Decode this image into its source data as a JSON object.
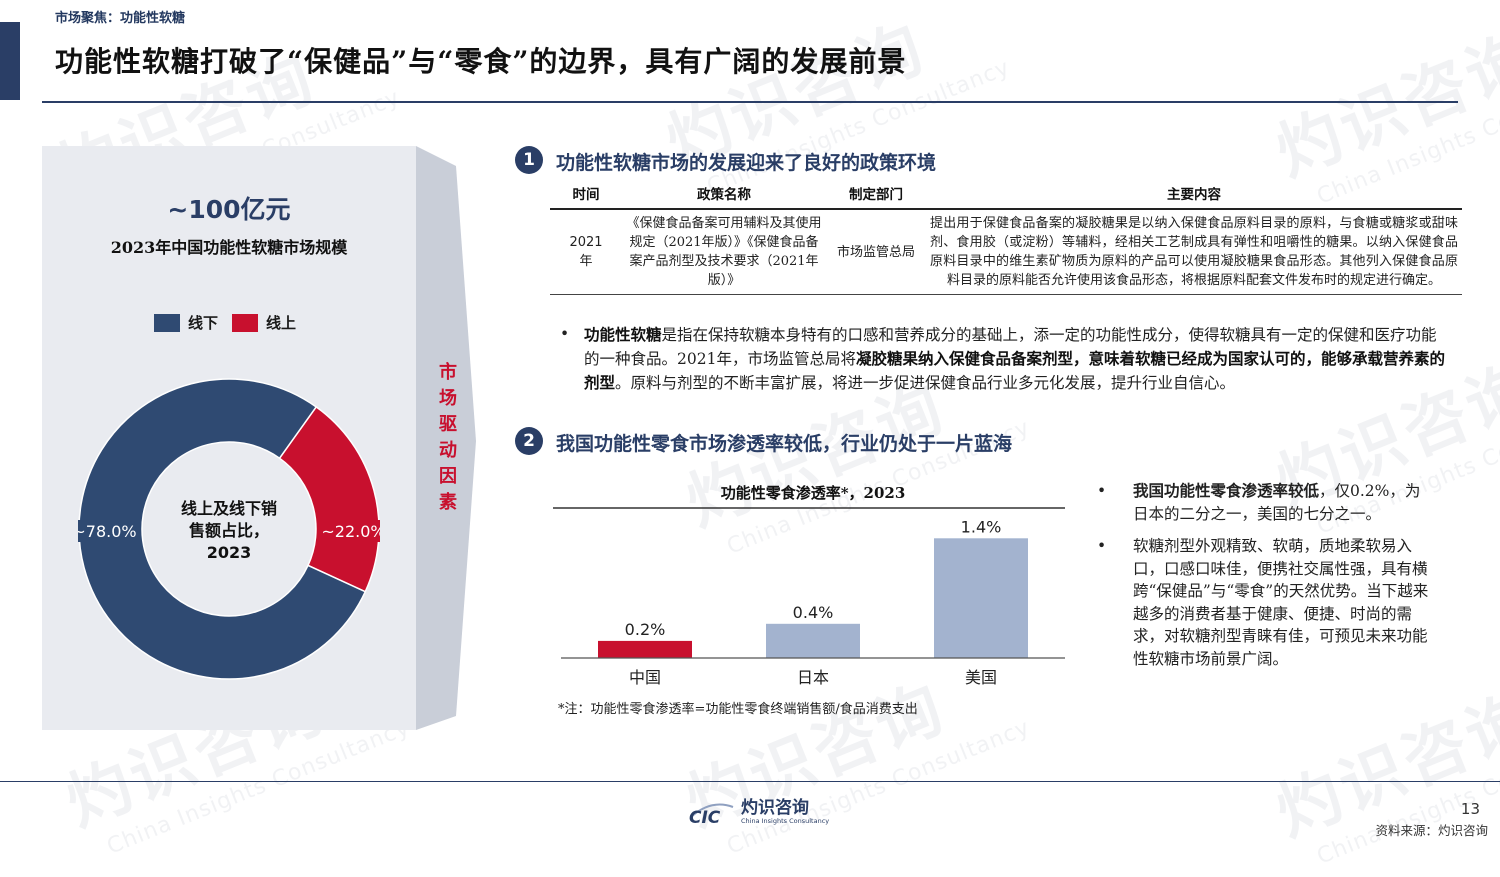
{
  "header": {
    "section_tag": "市场聚焦：功能性软糖",
    "title": "功能性软糖打破了“保健品”与“零食”的边界，具有广阔的发展前景"
  },
  "left_panel": {
    "market_size": "~100亿元",
    "market_caption": "2023年中国功能性软糖市场规模",
    "legend": [
      {
        "label": "线下",
        "color": "#2f4a72"
      },
      {
        "label": "线上",
        "color": "#c8102e"
      }
    ],
    "donut": {
      "center_lines": [
        "线上及线下销",
        "售额占比，",
        "2023"
      ],
      "segments": [
        {
          "name": "线下",
          "value": 78.0,
          "label": "~78.0%",
          "color": "#2f4a72"
        },
        {
          "name": "线上",
          "value": 22.0,
          "label": "~22.0%",
          "color": "#c8102e"
        }
      ]
    }
  },
  "drivers_label": [
    "市",
    "场",
    "驱",
    "动",
    "因",
    "素"
  ],
  "section1": {
    "number": "1",
    "title": "功能性软糖市场的发展迎来了良好的政策环境",
    "table": {
      "headers": [
        "时间",
        "政策名称",
        "制定部门",
        "主要内容"
      ],
      "row": {
        "time": [
          "2021",
          "年"
        ],
        "policy_name": "《保健食品备案可用辅料及其使用规定（2021年版）》《保健食品备案产品剂型及技术要求（2021年版）》",
        "department": "市场监管总局",
        "content": "提出用于保健食品备案的凝胶糖果是以纳入保健食品原料目录的原料，与食糖或糖浆或甜味剂、食用胶（或淀粉）等辅料，经相关工艺制成具有弹性和咀嚼性的糖果。以纳入保健食品原料目录中的维生素矿物质为原料的产品可以使用凝胶糖果食品形态。其他列入保健食品原料目录的原料能否允许使用该食品形态，将根据原料配套文件发布时的规定进行确定。"
      }
    },
    "bullet": {
      "b1": "功能性软糖",
      "t1": "是指在保持软糖本身特有的口感和营养成分的基础上，添一定的功能性成分，使得软糖具有一定的保健和医疗功能的一种食品。2021年，市场监管总局将",
      "b2": "凝胶糖果纳入保健食品备案剂型，意味着软糖已经成为国家认可的，能够承载营养素的剂型",
      "t2": "。原料与剂型的不断丰富扩展，将进一步促进保健食品行业多元化发展，提升行业自信心。"
    }
  },
  "section2": {
    "number": "2",
    "title": "我国功能性零食市场渗透率较低，行业仍处于一片蓝海",
    "chart_note": "*注：功能性零食渗透率=功能性零食终端销售额/食品消费支出",
    "bullets": [
      {
        "bold": "我国功能性零食渗透率较低",
        "text": "，仅0.2%，为日本的二分之一，美国的七分之一。"
      },
      {
        "bold": "",
        "text": "软糖剂型外观精致、软萌，质地柔软易入口，口感口味佳，便携社交属性强，具有横跨“保健品”与“零食”的天然优势。当下越来越多的消费者基于健康、便捷、时尚的需求，对软糖剂型青睐有佳，可预见未来功能性软糖市场前景广阔。"
      }
    ]
  },
  "chart_data": [
    {
      "type": "pie",
      "title": "",
      "categories": [
        "线下",
        "线上"
      ],
      "values": [
        78.0,
        22.0
      ],
      "labels": [
        "~78.0%",
        "~22.0%"
      ],
      "colors": [
        "#2f4a72",
        "#c8102e"
      ],
      "legend": "top"
    },
    {
      "type": "bar",
      "title": "功能性零食渗透率*，2023",
      "categories": [
        "中国",
        "日本",
        "美国"
      ],
      "values": [
        0.2,
        0.4,
        1.4
      ],
      "value_labels": [
        "0.2%",
        "0.4%",
        "1.4%"
      ],
      "colors": [
        "#c8102e",
        "#a3b3cf",
        "#a3b3cf"
      ],
      "ylim": [
        0,
        1.6
      ],
      "grid": false
    }
  ],
  "footer": {
    "logo_mark": "CIC",
    "logo_cn": "灼识咨询",
    "logo_en": "China Insights Consultancy",
    "page_number": "13",
    "source": "资料来源：灼识咨询"
  },
  "watermark": {
    "cn": "灼识咨询",
    "en": "China Insights Consultancy"
  }
}
